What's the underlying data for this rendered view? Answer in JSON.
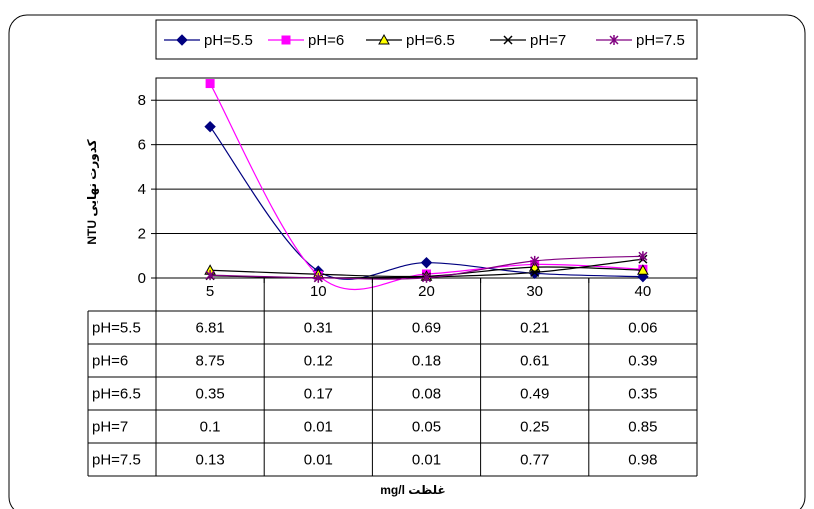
{
  "chart_data": {
    "type": "line",
    "categories": [
      "5",
      "10",
      "20",
      "30",
      "40"
    ],
    "ylim": [
      0,
      9
    ],
    "yticks": [
      "0",
      "2",
      "4",
      "6",
      "8"
    ],
    "ylabel": "کدورت نهایی NTU",
    "xlabel": "غلظت mg/l",
    "grid": true,
    "legend_position": "top",
    "series": [
      {
        "name": "pH=5.5",
        "color": "#000080",
        "marker": "diamond",
        "values": [
          6.81,
          0.31,
          0.69,
          0.21,
          0.06
        ],
        "labels": [
          "6.81",
          "0.31",
          "0.69",
          "0.21",
          "0.06"
        ]
      },
      {
        "name": "pH=6",
        "color": "#FF00FF",
        "marker": "square",
        "values": [
          8.75,
          0.12,
          0.18,
          0.61,
          0.39
        ],
        "labels": [
          "8.75",
          "0.12",
          "0.18",
          "0.61",
          "0.39"
        ]
      },
      {
        "name": "pH=6.5",
        "color": "#FFFF00",
        "marker": "triangle",
        "values": [
          0.35,
          0.17,
          0.08,
          0.49,
          0.35
        ],
        "labels": [
          "0.35",
          "0.17",
          "0.08",
          "0.49",
          "0.35"
        ]
      },
      {
        "name": "pH=7",
        "color": "#000000",
        "marker": "x",
        "values": [
          0.1,
          0.01,
          0.05,
          0.25,
          0.85
        ],
        "labels": [
          "0.1",
          "0.01",
          "0.05",
          "0.25",
          "0.85"
        ]
      },
      {
        "name": "pH=7.5",
        "color": "#800080",
        "marker": "star",
        "values": [
          0.13,
          0.01,
          0.01,
          0.77,
          0.98
        ],
        "labels": [
          "0.13",
          "0.01",
          "0.01",
          "0.77",
          "0.98"
        ]
      }
    ]
  }
}
